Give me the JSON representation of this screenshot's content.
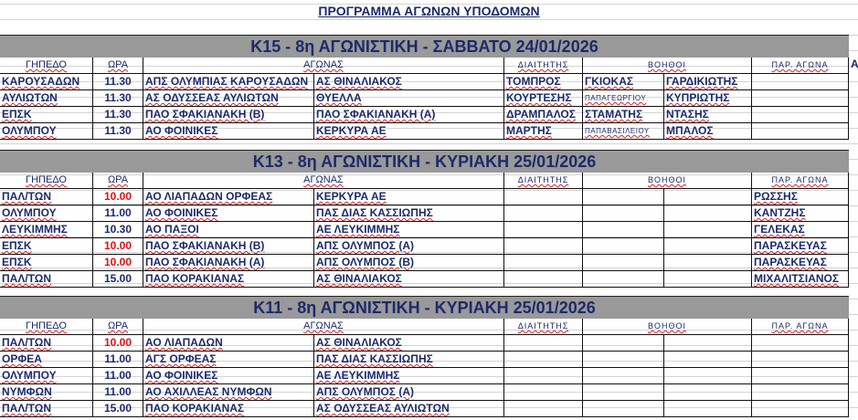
{
  "title": "ΠΡΟΓΡΑΜΜΑ ΑΓΩΝΩΝ ΥΠΟΔΟΜΩΝ",
  "headers": {
    "venue": "ΓΗΠΕΔΟ",
    "time": "ΩΡΑ",
    "match": "ΑΓΩΝΑΣ",
    "referee": "ΔΙΑΙΤΗΤΗΣ",
    "assistants": "ΒΟΗΘΟΙ",
    "observer": "ΠΑΡ. ΑΓΩΝΑ",
    "extra": "Α"
  },
  "colors": {
    "banner": "#999999",
    "text": "#1c2a6b",
    "early_time": "#e01010"
  },
  "sections": [
    {
      "banner": "K15 - 8η ΑΓΩΝΙΣΤΙΚΗ - ΣΑΒΒΑΤΟ  24/01/2026",
      "rows": [
        {
          "venue": "ΚΑΡΟΥΣΑΔΩΝ",
          "time": "11.30",
          "home": "ΑΠΣ ΟΛΥΜΠΙΑΣ ΚΑΡΟΥΣΑΔΩΝ",
          "away": "ΑΣ ΘΙΝΑΛΙΑΚΟΣ",
          "referee": "ΤΟΜΠΡΟΣ",
          "ass1": "ΓΚΙΟΚΑΣ",
          "ass2": "ΓΑΡΔΙΚΙΩΤΗΣ",
          "observer": ""
        },
        {
          "venue": "ΑΥΛΙΩΤΩΝ",
          "time": "11.30",
          "home": "ΑΣ ΟΔΥΣΣΕΑΣ ΑΥΛΙΩΤΩΝ",
          "away": "ΘΥΕΛΛΑ",
          "referee": "ΚΟΥΡΤΕΣΗΣ",
          "ass1": "ΠΑΠΑΓΕΩΡΓΙΟΥ",
          "ass2": "ΚΥΠΡΙΩΤΗΣ",
          "observer": ""
        },
        {
          "venue": "ΕΠΣΚ",
          "time": "11.30",
          "home": "ΠΑΟ ΣΦΑΚΙΑΝΑΚΗ (Β)",
          "away": "ΠΑΟ ΣΦΑΚΙΑΝΑΚΗ (Α)",
          "referee": "ΔΡΑΜΠΑΛΟΣ",
          "ass1": "ΣΤΑΜΑΤΗΣ",
          "ass2": "ΝΤΑΣΗΣ",
          "observer": ""
        },
        {
          "venue": "ΟΛΥΜΠΟΥ",
          "time": "11.30",
          "home": "ΑΟ ΦΟΙΝΙΚΕΣ",
          "away": " ΚΕΡΚΥΡΑ ΑΕ",
          "referee": "ΜΑΡΤΗΣ",
          "ass1": "ΠΑΠΑΒΑΣΙΛΕΙΟΥ",
          "ass2": "ΜΠΑΛΟΣ",
          "observer": ""
        }
      ]
    },
    {
      "banner": "K13 - 8η ΑΓΩΝΙΣΤΙΚΗ - ΚΥΡΙΑΚΗ 25/01/2026",
      "rows": [
        {
          "venue": "ΠΑΛ/ΤΩΝ",
          "time": "10.00",
          "home": "ΑΟ ΛΙΑΠΑΔΩΝ ΟΡΦΕΑΣ",
          "away": "ΚΕΡΚΥΡΑ ΑΕ",
          "referee": "",
          "ass1": "",
          "ass2": "",
          "observer": "ΡΩΣΣΗΣ"
        },
        {
          "venue": "ΟΛΥΜΠΟΥ",
          "time": "11.00",
          "home": "ΑΟ ΦΟΙΝΙΚΕΣ",
          "away": "ΠΑΣ ΔΙΑΣ ΚΑΣΣΙΩΠΗΣ",
          "referee": "",
          "ass1": "",
          "ass2": "",
          "observer": "ΚΑΝΤΖΗΣ"
        },
        {
          "venue": "ΛΕΥΚΙΜΜΗΣ",
          "time": "10.30",
          "home": "ΑΟ ΠΑΞΟΙ",
          "away": "ΑΕ ΛΕΥΚΙΜΜΗΣ",
          "referee": "",
          "ass1": "",
          "ass2": "",
          "observer": "ΓΕΛΕΚΑΣ"
        },
        {
          "venue": "ΕΠΣΚ",
          "time": "10.00",
          "home": "ΠΑΟ ΣΦΑΚΙΑΝΑΚΗ (Β)",
          "away": "ΑΠΣ ΟΛΥΜΠΟΣ (Α)",
          "referee": "",
          "ass1": "",
          "ass2": "",
          "observer": "ΠΑΡΑΣΚΕΥΑΣ"
        },
        {
          "venue": "ΕΠΣΚ",
          "time": "10.00",
          "home": "ΠΑΟ ΣΦΑΚΙΑΝΑΚΗ (Α)",
          "away": "ΑΠΣ ΟΛΥΜΠΟΣ (Β)",
          "referee": "",
          "ass1": "",
          "ass2": "",
          "observer": "ΠΑΡΑΣΚΕΥΑΣ"
        },
        {
          "venue": "ΠΑΛ/ΤΩΝ",
          "time": "15.00",
          "home": "ΠΑΟ ΚΟΡΑΚΙΑΝΑΣ",
          "away": "ΑΣ ΘΙΝΑΛΙΑΚΟΣ",
          "referee": "",
          "ass1": "",
          "ass2": "",
          "observer": "ΜΙΧΑΛΙΤΣΙΑΝΟΣ"
        }
      ]
    },
    {
      "banner": "K11 - 8η ΑΓΩΝΙΣΤΙΚΗ - ΚΥΡΙΑΚΗ  25/01/2026",
      "rows": [
        {
          "venue": "ΠΑΛ/ΤΩΝ",
          "time": "10.00",
          "home": "ΑΟ ΛΙΑΠΑΔΩΝ",
          "away": "ΑΣ ΘΙΝΑΛΙΑΚΟΣ",
          "referee": "",
          "ass1": "",
          "ass2": "",
          "observer": ""
        },
        {
          "venue": "ΟΡΦΕΑ",
          "time": "11.00",
          "home": "ΑΓΣ ΟΡΦΕΑΣ",
          "away": "ΠΑΣ ΔΙΑΣ ΚΑΣΣΙΩΠΗΣ",
          "referee": "",
          "ass1": "",
          "ass2": "",
          "observer": ""
        },
        {
          "venue": "ΟΛΥΜΠΟΥ",
          "time": "11.00",
          "home": "ΑΟ ΦΟΙΝΙΚΕΣ",
          "away": "ΑΕ ΛΕΥΚΙΜΜΗΣ",
          "referee": "",
          "ass1": "",
          "ass2": "",
          "observer": ""
        },
        {
          "venue": "ΝΥΜΦΩΝ",
          "time": "11.00",
          "home": "ΑΟ ΑΧΙΛΛΕΑΣ ΝΥΜΦΩΝ",
          "away": "ΑΠΣ ΟΛΥΜΠΟΣ (Α)",
          "referee": "",
          "ass1": "",
          "ass2": "",
          "observer": ""
        },
        {
          "venue": "ΠΑΛ/ΤΩΝ",
          "time": "15.00",
          "home": "ΠΑΟ ΚΟΡΑΚΙΑΝΑΣ",
          "away": "ΑΣ ΟΔΥΣΣΕΑΣ ΑΥΛΙΩΤΩΝ",
          "referee": "",
          "ass1": "",
          "ass2": "",
          "observer": ""
        }
      ]
    }
  ]
}
